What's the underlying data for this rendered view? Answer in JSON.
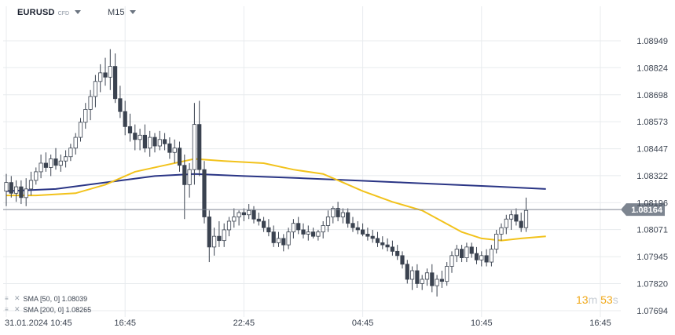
{
  "header": {
    "symbol": "EURUSD",
    "symbol_type": "CFD",
    "timeframe": "M15"
  },
  "legend": {
    "sma50": "SMA [50, 0] 1.08039",
    "sma200": "SMA [200, 0] 1.08265"
  },
  "countdown": {
    "min": "13",
    "min_unit": "m",
    "sec": "53",
    "sec_unit": "s"
  },
  "colors": {
    "bull": "#ffffff",
    "bear": "#3b4350",
    "wick": "#3b4350",
    "sma50": "#f2c21b",
    "sma200": "#2a3585",
    "price_line": "#7d8590",
    "price_tag": "#7d8590",
    "grid": "#e8ebee"
  },
  "chart_data": {
    "type": "candlestick",
    "ylim": [
      1.0762,
      1.0902
    ],
    "y_ticks": [
      "1.08949",
      "1.08824",
      "1.08698",
      "1.08573",
      "1.08447",
      "1.08322",
      "1.08196",
      "1.08071",
      "1.07945",
      "1.07820",
      "1.07694"
    ],
    "x_ticks": [
      {
        "label": "31.01.2024  10:45",
        "index": 0
      },
      {
        "label": "16:45",
        "index": 24
      },
      {
        "label": "22:45",
        "index": 48
      },
      {
        "label": "04:45",
        "index": 72
      },
      {
        "label": "10:45",
        "index": 96
      },
      {
        "label": "16:45",
        "index": 120
      }
    ],
    "current_price": "1.08164",
    "ohlc": [
      [
        1.0825,
        1.0833,
        1.0818,
        1.0829
      ],
      [
        1.0829,
        1.0832,
        1.0822,
        1.0824
      ],
      [
        1.0824,
        1.083,
        1.082,
        1.0827
      ],
      [
        1.0827,
        1.083,
        1.0819,
        1.0822
      ],
      [
        1.0822,
        1.0831,
        1.0818,
        1.0826
      ],
      [
        1.0826,
        1.0834,
        1.0823,
        1.083
      ],
      [
        1.083,
        1.0836,
        1.0828,
        1.0834
      ],
      [
        1.0834,
        1.0842,
        1.0831,
        1.0838
      ],
      [
        1.0838,
        1.0843,
        1.0834,
        1.0836
      ],
      [
        1.0836,
        1.0842,
        1.0832,
        1.084
      ],
      [
        1.084,
        1.0845,
        1.0835,
        1.0837
      ],
      [
        1.0837,
        1.0842,
        1.0834,
        1.0839
      ],
      [
        1.0839,
        1.0844,
        1.0836,
        1.0841
      ],
      [
        1.0841,
        1.0847,
        1.0839,
        1.0845
      ],
      [
        1.0845,
        1.0852,
        1.0842,
        1.085
      ],
      [
        1.085,
        1.0859,
        1.0848,
        1.0857
      ],
      [
        1.0857,
        1.0866,
        1.0854,
        1.0863
      ],
      [
        1.0863,
        1.0872,
        1.0858,
        1.0869
      ],
      [
        1.0869,
        1.0879,
        1.0864,
        1.0876
      ],
      [
        1.0876,
        1.0884,
        1.0871,
        1.088
      ],
      [
        1.088,
        1.0887,
        1.0874,
        1.0878
      ],
      [
        1.0878,
        1.0891,
        1.0872,
        1.0883
      ],
      [
        1.0883,
        1.0889,
        1.0866,
        1.0868
      ],
      [
        1.0868,
        1.0874,
        1.0859,
        1.0862
      ],
      [
        1.0862,
        1.0867,
        1.0851,
        1.0855
      ],
      [
        1.0855,
        1.0861,
        1.0848,
        1.0852
      ],
      [
        1.0852,
        1.0856,
        1.0844,
        1.0849
      ],
      [
        1.0849,
        1.0854,
        1.0844,
        1.0851
      ],
      [
        1.0851,
        1.0856,
        1.0843,
        1.0845
      ],
      [
        1.0845,
        1.0853,
        1.0841,
        1.085
      ],
      [
        1.085,
        1.0852,
        1.0843,
        1.0846
      ],
      [
        1.0846,
        1.0853,
        1.0844,
        1.0849
      ],
      [
        1.0849,
        1.0852,
        1.0844,
        1.0847
      ],
      [
        1.0847,
        1.085,
        1.084,
        1.0843
      ],
      [
        1.0843,
        1.0849,
        1.0838,
        1.0845
      ],
      [
        1.0845,
        1.0848,
        1.0834,
        1.0837
      ],
      [
        1.0837,
        1.0842,
        1.0812,
        1.0828
      ],
      [
        1.0828,
        1.0838,
        1.0822,
        1.0835
      ],
      [
        1.0835,
        1.0866,
        1.0828,
        1.0856
      ],
      [
        1.0856,
        1.0867,
        1.0832,
        1.0835
      ],
      [
        1.0835,
        1.0839,
        1.081,
        1.0813
      ],
      [
        1.0813,
        1.0816,
        1.0792,
        1.0799
      ],
      [
        1.0799,
        1.0808,
        1.0795,
        1.0804
      ],
      [
        1.0804,
        1.0811,
        1.0799,
        1.0802
      ],
      [
        1.0802,
        1.081,
        1.0799,
        1.0807
      ],
      [
        1.0807,
        1.0813,
        1.0804,
        1.0811
      ],
      [
        1.0811,
        1.0817,
        1.0808,
        1.0813
      ],
      [
        1.0813,
        1.0816,
        1.0809,
        1.0815
      ],
      [
        1.0815,
        1.0817,
        1.0811,
        1.0814
      ],
      [
        1.0814,
        1.0819,
        1.0812,
        1.0816
      ],
      [
        1.0816,
        1.0818,
        1.081,
        1.0812
      ],
      [
        1.0812,
        1.0815,
        1.0809,
        1.0811
      ],
      [
        1.0811,
        1.0813,
        1.0806,
        1.0808
      ],
      [
        1.0808,
        1.0812,
        1.0804,
        1.0806
      ],
      [
        1.0806,
        1.0809,
        1.0799,
        1.0801
      ],
      [
        1.0801,
        1.0806,
        1.0799,
        1.0803
      ],
      [
        1.0803,
        1.0805,
        1.0797,
        1.08
      ],
      [
        1.08,
        1.0808,
        1.0798,
        1.0806
      ],
      [
        1.0806,
        1.0812,
        1.0803,
        1.081
      ],
      [
        1.081,
        1.0813,
        1.0805,
        1.0807
      ],
      [
        1.0807,
        1.081,
        1.0803,
        1.0805
      ],
      [
        1.0805,
        1.0809,
        1.0802,
        1.0806
      ],
      [
        1.0806,
        1.0808,
        1.0803,
        1.0804
      ],
      [
        1.0804,
        1.0807,
        1.0802,
        1.0806
      ],
      [
        1.0806,
        1.0811,
        1.0803,
        1.0809
      ],
      [
        1.0809,
        1.0816,
        1.0806,
        1.0813
      ],
      [
        1.0813,
        1.0818,
        1.081,
        1.0817
      ],
      [
        1.0817,
        1.082,
        1.0811,
        1.0813
      ],
      [
        1.0813,
        1.0817,
        1.081,
        1.0815
      ],
      [
        1.0815,
        1.0817,
        1.0808,
        1.081
      ],
      [
        1.081,
        1.0813,
        1.0806,
        1.0808
      ],
      [
        1.0808,
        1.0811,
        1.0805,
        1.0807
      ],
      [
        1.0807,
        1.081,
        1.0804,
        1.0805
      ],
      [
        1.0805,
        1.0808,
        1.0802,
        1.0804
      ],
      [
        1.0804,
        1.0807,
        1.0801,
        1.0803
      ],
      [
        1.0803,
        1.0806,
        1.0799,
        1.0801
      ],
      [
        1.0801,
        1.0804,
        1.0798,
        1.08
      ],
      [
        1.08,
        1.0803,
        1.0797,
        1.0799
      ],
      [
        1.0799,
        1.0802,
        1.0795,
        1.0797
      ],
      [
        1.0797,
        1.08,
        1.0793,
        1.0795
      ],
      [
        1.0795,
        1.0797,
        1.0789,
        1.0791
      ],
      [
        1.0791,
        1.0793,
        1.0782,
        1.0784
      ],
      [
        1.0784,
        1.079,
        1.0779,
        1.0788
      ],
      [
        1.0788,
        1.0791,
        1.078,
        1.0782
      ],
      [
        1.0782,
        1.0786,
        1.0779,
        1.0784
      ],
      [
        1.0784,
        1.0789,
        1.0781,
        1.0787
      ],
      [
        1.0787,
        1.0791,
        1.0778,
        1.0781
      ],
      [
        1.0781,
        1.0786,
        1.0776,
        1.0784
      ],
      [
        1.0784,
        1.0788,
        1.078,
        1.0783
      ],
      [
        1.0783,
        1.0792,
        1.0781,
        1.079
      ],
      [
        1.079,
        1.0797,
        1.0787,
        1.0795
      ],
      [
        1.0795,
        1.08,
        1.0792,
        1.0798
      ],
      [
        1.0798,
        1.08,
        1.0792,
        1.0794
      ],
      [
        1.0794,
        1.0801,
        1.0792,
        1.0799
      ],
      [
        1.0799,
        1.0801,
        1.0794,
        1.0796
      ],
      [
        1.0796,
        1.0799,
        1.0791,
        1.0793
      ],
      [
        1.0793,
        1.0797,
        1.079,
        1.0795
      ],
      [
        1.0795,
        1.0798,
        1.079,
        1.0792
      ],
      [
        1.0792,
        1.08,
        1.079,
        1.0798
      ],
      [
        1.0798,
        1.0807,
        1.0796,
        1.0805
      ],
      [
        1.0805,
        1.081,
        1.0802,
        1.0808
      ],
      [
        1.0808,
        1.0814,
        1.0805,
        1.0812
      ],
      [
        1.0812,
        1.0816,
        1.0807,
        1.0814
      ],
      [
        1.0814,
        1.0817,
        1.0809,
        1.0811
      ],
      [
        1.0811,
        1.0815,
        1.0806,
        1.0808
      ],
      [
        1.0808,
        1.0822,
        1.0806,
        1.0816
      ]
    ],
    "sma50": [
      [
        0,
        1.0823
      ],
      [
        6,
        1.0823
      ],
      [
        14,
        1.0824
      ],
      [
        20,
        1.0828
      ],
      [
        26,
        1.0834
      ],
      [
        32,
        1.0837
      ],
      [
        38,
        1.084
      ],
      [
        44,
        1.0839
      ],
      [
        52,
        1.0838
      ],
      [
        58,
        1.0835
      ],
      [
        64,
        1.0833
      ],
      [
        68,
        1.0829
      ],
      [
        72,
        1.0825
      ],
      [
        78,
        1.082
      ],
      [
        84,
        1.0816
      ],
      [
        88,
        1.0811
      ],
      [
        92,
        1.0806
      ],
      [
        96,
        1.0803
      ],
      [
        100,
        1.0802
      ],
      [
        104,
        1.0803
      ],
      [
        109,
        1.0804
      ]
    ],
    "sma200": [
      [
        0,
        1.0825
      ],
      [
        10,
        1.0826
      ],
      [
        20,
        1.0829
      ],
      [
        30,
        1.0832
      ],
      [
        38,
        1.0833
      ],
      [
        48,
        1.0832
      ],
      [
        60,
        1.0831
      ],
      [
        70,
        1.083
      ],
      [
        80,
        1.0829
      ],
      [
        90,
        1.0828
      ],
      [
        100,
        1.0827
      ],
      [
        109,
        1.0826
      ]
    ]
  }
}
